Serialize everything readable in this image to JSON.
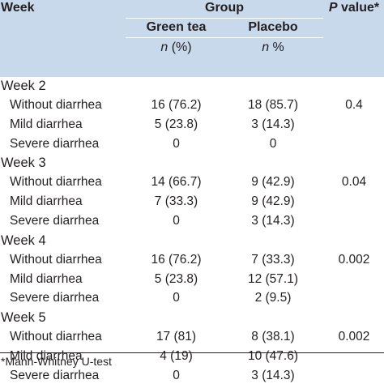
{
  "header": {
    "week": "Week",
    "group": "Group",
    "p_value_prefix": "P",
    "p_value_suffix": " value*",
    "green_tea": "Green tea",
    "placebo": "Placebo",
    "n_pct_green_italic": "n",
    "n_pct_green_rest": " (%)",
    "n_pct_placebo_italic": "n",
    "n_pct_placebo_rest": " %"
  },
  "weeks": [
    {
      "label": "Week 2",
      "p_value": "0.4",
      "rows": [
        {
          "label": "Without diarrhea",
          "green_tea": "16 (76.2)",
          "placebo": "18 (85.7)"
        },
        {
          "label": "Mild diarrhea",
          "green_tea": "5 (23.8)",
          "placebo": "3 (14.3)"
        },
        {
          "label": "Severe diarrhea",
          "green_tea": "0",
          "placebo": "0"
        }
      ]
    },
    {
      "label": "Week 3",
      "p_value": "0.04",
      "rows": [
        {
          "label": "Without diarrhea",
          "green_tea": "14 (66.7)",
          "placebo": "9 (42.9)"
        },
        {
          "label": "Mild diarrhea",
          "green_tea": "7 (33.3)",
          "placebo": "9 (42.9)"
        },
        {
          "label": "Severe diarrhea",
          "green_tea": "0",
          "placebo": "3 (14.3)"
        }
      ]
    },
    {
      "label": "Week 4",
      "p_value": "0.002",
      "rows": [
        {
          "label": "Without diarrhea",
          "green_tea": "16 (76.2)",
          "placebo": "7 (33.3)"
        },
        {
          "label": "Mild diarrhea",
          "green_tea": "5 (23.8)",
          "placebo": "12 (57.1)"
        },
        {
          "label": "Severe diarrhea",
          "green_tea": "0",
          "placebo": "2 (9.5)"
        }
      ]
    },
    {
      "label": "Week 5",
      "p_value": "0.002",
      "rows": [
        {
          "label": "Without diarrhea",
          "green_tea": "17 (81)",
          "placebo": "8 (38.1)"
        },
        {
          "label": "Mild diarrhea",
          "green_tea": "4 (19)",
          "placebo": "10 (47.6)"
        },
        {
          "label": "Severe diarrhea",
          "green_tea": "0",
          "placebo": "3 (14.3)"
        }
      ]
    }
  ],
  "footnote": "*Mann-Whitney U-test",
  "colors": {
    "header_bg": "#c8d9ec",
    "text": "#231f20"
  }
}
